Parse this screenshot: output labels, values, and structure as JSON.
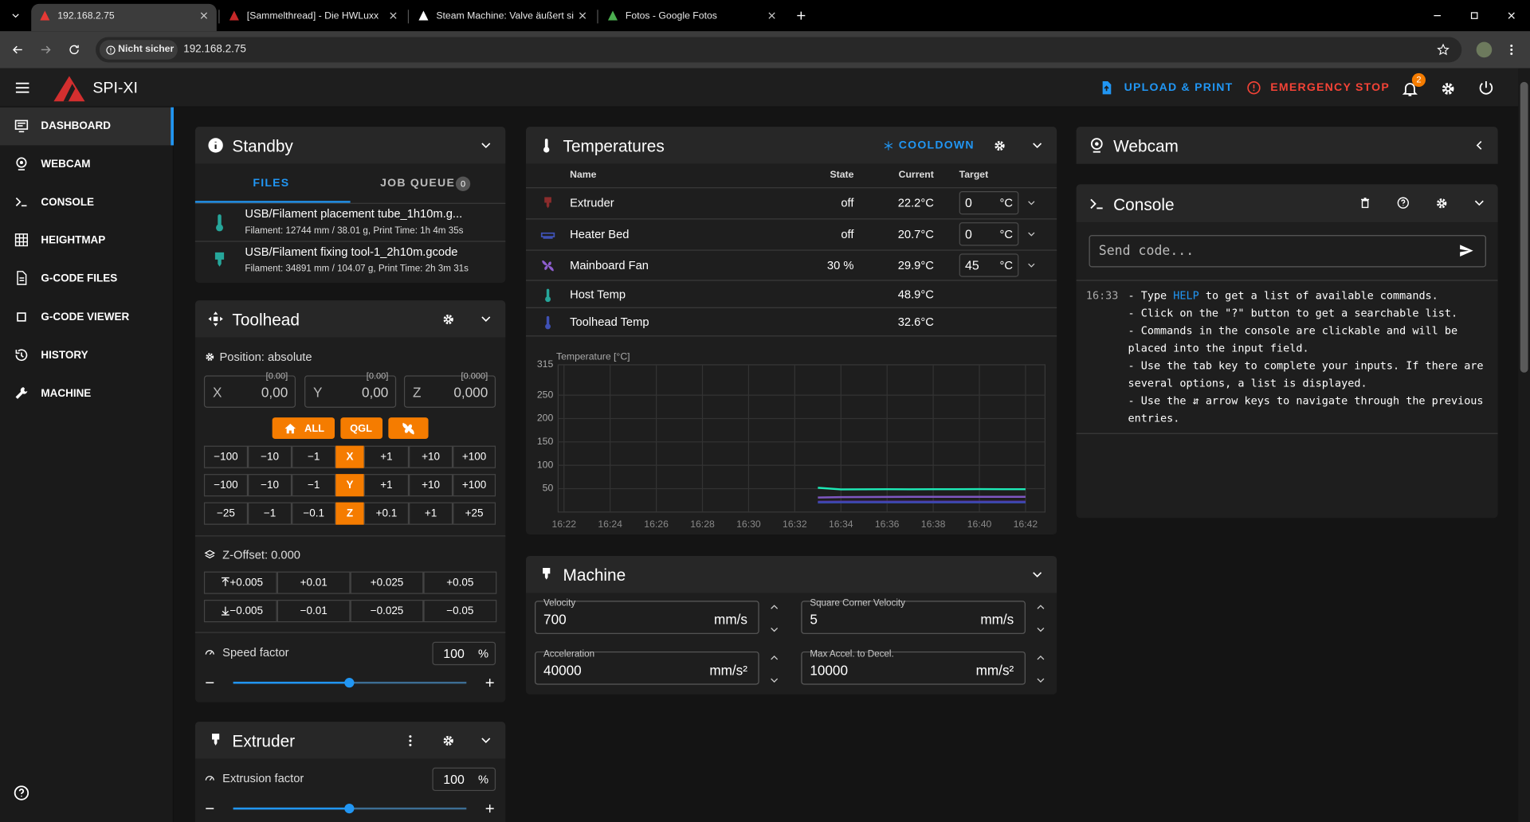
{
  "browser": {
    "tabs": [
      "192.168.2.75",
      "[Sammelthread] - Die HWLuxx",
      "Steam Machine: Valve äußert si",
      "Fotos - Google Fotos"
    ],
    "security": "Nicht sicher",
    "url": "192.168.2.75"
  },
  "header": {
    "title": "SPI-XI",
    "upload": "UPLOAD & PRINT",
    "emergency": "EMERGENCY STOP",
    "notifications": "2"
  },
  "nav": [
    "DASHBOARD",
    "WEBCAM",
    "CONSOLE",
    "HEIGHTMAP",
    "G-CODE FILES",
    "G-CODE VIEWER",
    "HISTORY",
    "MACHINE"
  ],
  "standby": {
    "title": "Standby",
    "tabs": [
      "FILES",
      "JOB QUEUE"
    ],
    "queue_count": "0",
    "files": [
      {
        "name": "USB/Filament placement tube_1h10m.g...",
        "meta": "Filament: 12744 mm / 38.01 g, Print Time: 1h 4m 35s"
      },
      {
        "name": "USB/Filament fixing tool-1_2h10m.gcode",
        "meta": "Filament: 34891 mm / 104.07 g, Print Time: 2h 3m 31s"
      }
    ]
  },
  "toolhead": {
    "title": "Toolhead",
    "position": "Position: absolute",
    "axes": [
      {
        "label": "X",
        "target": "[0.00]",
        "value": "0,00"
      },
      {
        "label": "Y",
        "target": "[0.00]",
        "value": "0,00"
      },
      {
        "label": "Z",
        "target": "[0.000]",
        "value": "0,000"
      }
    ],
    "home": [
      "ALL",
      "QGL"
    ],
    "jog": [
      [
        "−100",
        "−10",
        "−1",
        "X",
        "+1",
        "+10",
        "+100"
      ],
      [
        "−100",
        "−10",
        "−1",
        "Y",
        "+1",
        "+10",
        "+100"
      ],
      [
        "−25",
        "−1",
        "−0.1",
        "Z",
        "+0.1",
        "+1",
        "+25"
      ]
    ],
    "zoffset": "Z-Offset: 0.000",
    "zup": [
      "+0.005",
      "+0.01",
      "+0.025",
      "+0.05"
    ],
    "zdown": [
      "−0.005",
      "−0.01",
      "−0.025",
      "−0.05"
    ],
    "speed": {
      "label": "Speed factor",
      "value": "100",
      "unit": "%"
    }
  },
  "extruder": {
    "title": "Extruder",
    "factor": {
      "label": "Extrusion factor",
      "value": "100",
      "unit": "%"
    }
  },
  "temperatures": {
    "title": "Temperatures",
    "cooldown": "COOLDOWN",
    "headers": [
      "Name",
      "State",
      "Current",
      "Target"
    ],
    "rows": [
      {
        "name": "Extruder",
        "state": "off",
        "current": "22.2°C",
        "target": "0",
        "unit": "°C"
      },
      {
        "name": "Heater Bed",
        "state": "off",
        "current": "20.7°C",
        "target": "0",
        "unit": "°C"
      },
      {
        "name": "Mainboard Fan",
        "state": "30 %",
        "current": "29.9°C",
        "target": "45",
        "unit": "°C"
      },
      {
        "name": "Host Temp",
        "current": "48.9°C"
      },
      {
        "name": "Toolhead Temp",
        "current": "32.6°C"
      }
    ],
    "chart_data": {
      "type": "line",
      "ylabel": "Temperature [°C]",
      "x": [
        "16:22",
        null,
        "16:24",
        null,
        "16:26",
        null,
        "16:28",
        null,
        "16:30",
        null,
        "16:32",
        null,
        "16:34",
        null,
        "16:36",
        null,
        "16:38",
        null,
        "16:40",
        null,
        "16:42"
      ],
      "ylim": [
        0,
        315
      ],
      "yticks": [
        50,
        100,
        150,
        200,
        250,
        315
      ],
      "grid": true,
      "series": [
        {
          "color": "#1de9b6",
          "values": [
            null,
            null,
            null,
            null,
            null,
            null,
            null,
            null,
            null,
            null,
            null,
            52,
            48.5,
            48.7,
            48.9,
            48.6,
            48.8,
            48.9,
            49,
            48.8,
            48.9
          ]
        },
        {
          "color": "#7e57c2",
          "values": [
            null,
            null,
            null,
            null,
            null,
            null,
            null,
            null,
            null,
            null,
            null,
            31,
            32,
            32.2,
            32.4,
            32.5,
            32.6,
            32.6,
            32.6,
            32.6,
            32.6
          ]
        },
        {
          "color": "#5e35b1",
          "values": [
            null,
            null,
            null,
            null,
            null,
            null,
            null,
            null,
            null,
            null,
            null,
            22,
            22.1,
            22.2,
            22.2,
            22.2,
            22.2,
            22.2,
            22.2,
            22.2,
            22.2
          ]
        },
        {
          "color": "#3949ab",
          "values": [
            null,
            null,
            null,
            null,
            null,
            null,
            null,
            null,
            null,
            null,
            null,
            20.5,
            20.6,
            20.7,
            20.7,
            20.7,
            20.7,
            20.7,
            20.7,
            20.7,
            20.7
          ]
        }
      ]
    }
  },
  "machine": {
    "title": "Machine",
    "fields": [
      {
        "label": "Velocity",
        "value": "700",
        "unit": "mm/s"
      },
      {
        "label": "Square Corner Velocity",
        "value": "5",
        "unit": "mm/s"
      },
      {
        "label": "Acceleration",
        "value": "40000",
        "unit": "mm/s²"
      },
      {
        "label": "Max Accel. to Decel.",
        "value": "10000",
        "unit": "mm/s²"
      }
    ]
  },
  "webcam": {
    "title": "Webcam"
  },
  "console": {
    "title": "Console",
    "placeholder": "Send code...",
    "time": "16:33",
    "first": {
      "pre": "- Type ",
      "cmd": "HELP",
      "post": " to get a list of available commands."
    },
    "lines": [
      "- Click on the \"?\" button to get a searchable list.",
      "- Commands in the console are clickable and will be",
      "placed into the input field.",
      "- Use the tab key to complete your inputs. If there are",
      "several options, a list is displayed.",
      "- Use the ⇵ arrow keys to navigate through the previous",
      "entries."
    ]
  }
}
